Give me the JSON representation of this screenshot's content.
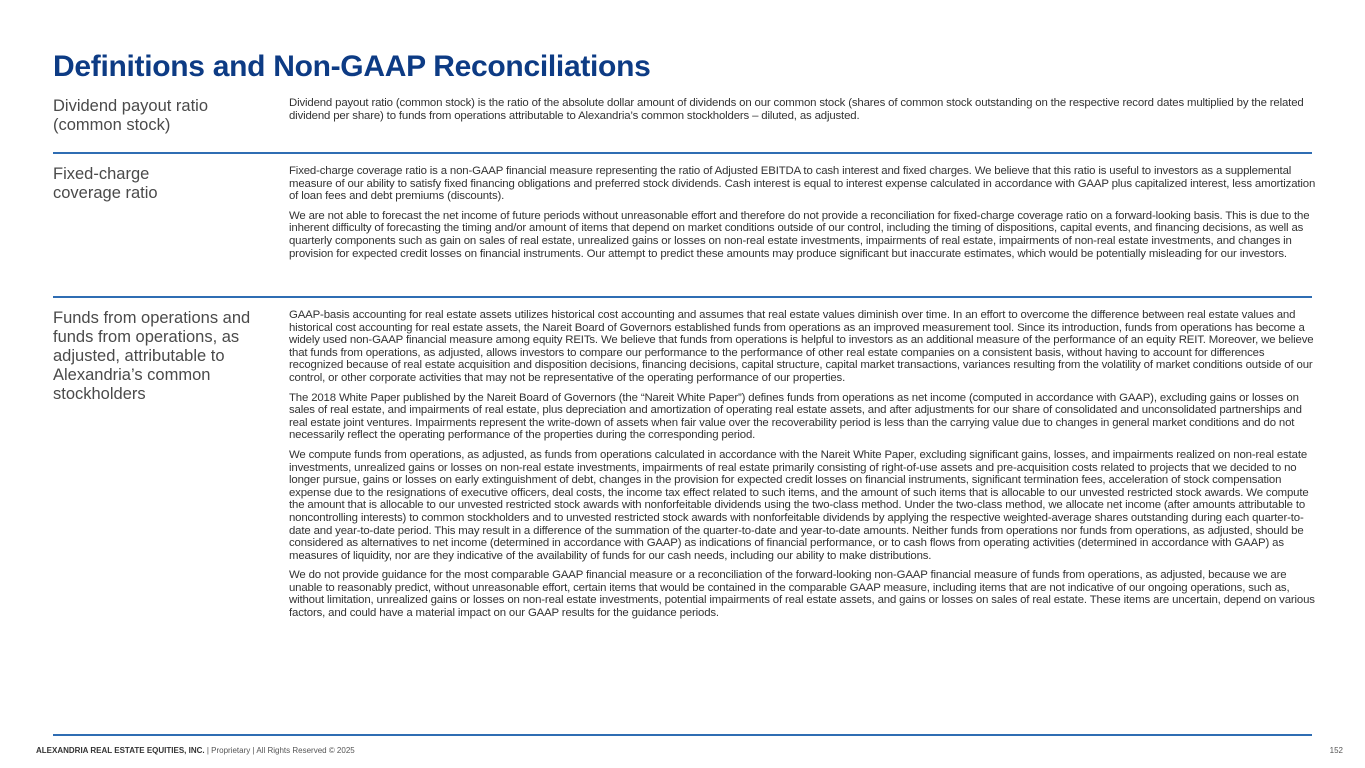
{
  "title": "Definitions and Non-GAAP Reconciliations",
  "sections": [
    {
      "label": "Dividend payout ratio (common stock)",
      "paragraphs": [
        "Dividend payout ratio (common stock) is the ratio of the absolute dollar amount of dividends on our common stock (shares of common stock outstanding on the respective record dates multiplied by the related dividend per share) to funds from operations attributable to Alexandria’s common stockholders – diluted, as adjusted."
      ]
    },
    {
      "label": "Fixed-charge coverage ratio",
      "paragraphs": [
        "Fixed-charge coverage ratio is a non-GAAP financial measure representing the ratio of Adjusted EBITDA to cash interest and fixed charges. We believe that this ratio is useful to investors as a supplemental measure of our ability to satisfy fixed financing obligations and preferred stock dividends. Cash interest is equal to interest expense calculated in accordance with GAAP plus capitalized interest, less amortization of loan fees and debt premiums (discounts).",
        "We are not able to forecast the net income of future periods without unreasonable effort and therefore do not provide a reconciliation for fixed-charge coverage ratio on a forward-looking basis. This is due to the inherent difficulty of forecasting the timing and/or amount of items that depend on market conditions outside of our control, including the timing of dispositions, capital events, and financing decisions, as well as quarterly components such as gain on sales of real estate, unrealized gains or losses on non-real estate investments, impairments of real estate, impairments of non-real estate investments, and changes in provision for expected credit losses on financial instruments. Our attempt to predict these amounts may produce significant but inaccurate estimates, which would be potentially misleading for our investors."
      ]
    },
    {
      "label": "Funds from operations and funds from operations, as adjusted, attributable to Alexandria’s common stockholders",
      "paragraphs": [
        "GAAP-basis accounting for real estate assets utilizes historical cost accounting and assumes that real estate values diminish over time. In an effort to overcome the difference between real estate values and historical cost accounting for real estate assets, the Nareit Board of Governors established funds from operations as an improved measurement tool. Since its introduction, funds from operations has become a widely used non-GAAP financial measure among equity REITs. We believe that funds from operations is helpful to investors as an additional measure of the performance of an equity REIT. Moreover, we believe that funds from operations, as adjusted, allows investors to compare our performance to the performance of other real estate companies on a consistent basis, without having to account for differences recognized because of real estate acquisition and disposition decisions, financing decisions, capital structure, capital market transactions, variances resulting from the volatility of market conditions outside of our control, or other corporate activities that may not be representative of the operating performance of our properties.",
        "The 2018 White Paper published by the Nareit Board of Governors (the “Nareit White Paper”) defines funds from operations as net income (computed in accordance with GAAP), excluding gains or losses on sales of real estate, and impairments of real estate, plus depreciation and amortization of operating real estate assets, and after adjustments for our share of consolidated and unconsolidated partnerships and real estate joint ventures. Impairments represent the write-down of assets when fair value over the recoverability period is less than the carrying value due to changes in general market conditions and do not necessarily reflect the operating performance of the properties during the corresponding period.",
        "We compute funds from operations, as adjusted, as funds from operations calculated in accordance with the Nareit White Paper, excluding significant gains, losses, and impairments realized on non-real estate investments, unrealized gains or losses on non-real estate investments, impairments of real estate primarily consisting of right-of-use assets and pre-acquisition costs related to projects that we decided to no longer pursue, gains or losses on early extinguishment of debt, changes in the provision for expected credit losses on financial instruments, significant termination fees, acceleration of stock compensation expense due to the resignations of executive officers, deal costs, the income tax effect related to such items, and the amount of such items that is allocable to our unvested restricted stock awards. We compute the amount that is allocable to our unvested restricted stock awards with nonforfeitable dividends using the two-class method. Under the two-class method, we allocate net income (after amounts attributable to noncontrolling interests) to common stockholders and to unvested restricted stock awards with nonforfeitable dividends by applying the respective weighted-average shares outstanding during each quarter-to-date and year-to-date period. This may result in a difference of the summation of the quarter-to-date and year-to-date amounts. Neither funds from operations nor funds from operations, as adjusted, should be considered as alternatives to net income (determined in accordance with GAAP) as indications of financial performance, or to cash flows from operating activities (determined in accordance with GAAP) as measures of liquidity, nor are they indicative of the availability of funds for our cash needs, including our ability to make distributions.",
        "We do not provide guidance for the most comparable GAAP financial measure or a reconciliation of the forward-looking non-GAAP financial measure of funds from operations, as adjusted, because we are unable to reasonably predict, without unreasonable effort, certain items that would be contained in the comparable GAAP measure, including items that are not indicative of our ongoing operations, such as, without limitation, unrealized gains or losses on non-real estate investments, potential impairments of real estate assets, and gains or losses on sales of real estate. These items are uncertain, depend on various factors, and could have a material impact on our GAAP results for the guidance periods."
      ]
    }
  ],
  "footer": {
    "company": "ALEXANDRIA REAL ESTATE EQUITIES, INC.",
    "rights": " | Proprietary | All Rights Reserved © 2025",
    "page_number": "152"
  },
  "colors": {
    "title": "#0d3b84",
    "divider": "#2f6db3"
  }
}
